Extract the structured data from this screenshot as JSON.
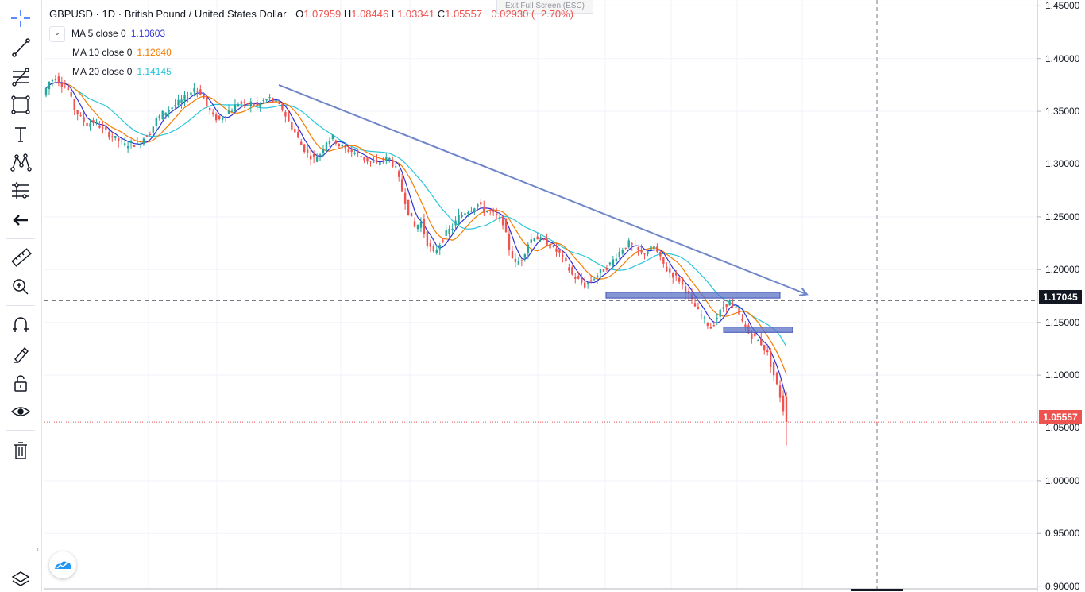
{
  "header": {
    "symbol": "GBPUSD",
    "interval": "1D",
    "description": "British Pound / United States Dollar",
    "ohlc": {
      "open_label": "O",
      "open": "1.07959",
      "high_label": "H",
      "high": "1.08446",
      "low_label": "L",
      "low": "1.03341",
      "close_label": "C",
      "close": "1.05557",
      "change": "−0.02930 (−2.70%)"
    }
  },
  "exit_fullscreen": "Exit Full Screen (ESC)",
  "indicators": [
    {
      "label": "MA 5 close 0",
      "value": "1.10603",
      "color": "#2f2fd6"
    },
    {
      "label": "MA 10 close 0",
      "value": "1.12640",
      "color": "#f57c00"
    },
    {
      "label": "MA 20 close 0",
      "value": "1.14145",
      "color": "#26c6da"
    }
  ],
  "toolbar": {
    "tools": [
      "crosshair-icon",
      "trend-line-icon",
      "fib-icon",
      "rectangle-icon",
      "text-icon",
      "pattern-icon",
      "forecast-icon",
      "back-arrow-icon",
      "ruler-icon",
      "zoom-in-icon",
      "magnet-icon",
      "lock-drawings-icon",
      "unlock-icon",
      "eye-icon",
      "trash-icon"
    ]
  },
  "price_tags": {
    "crosshair_price": "1.17045",
    "last_price": "1.05557"
  },
  "colors": {
    "up": "#26a69a",
    "down": "#ef5350",
    "trendline": "#6f87c9",
    "zone_fill": "#5c73c7",
    "last_price": "#ef5350",
    "crosshair_tag": "#131722"
  },
  "chart_data": {
    "type": "candlestick",
    "symbol": "GBPUSD",
    "interval": "1D",
    "y_ticks": [
      "1.45000",
      "1.40000",
      "1.35000",
      "1.30000",
      "1.25000",
      "1.20000",
      "1.15000",
      "1.10000",
      "1.05000",
      "1.00000",
      "0.95000",
      "0.90000"
    ],
    "ylim": [
      0.8975,
      1.4555
    ],
    "close_path": [
      1.365,
      1.378,
      1.382,
      1.376,
      1.37,
      1.352,
      1.344,
      1.338,
      1.34,
      1.336,
      1.33,
      1.326,
      1.322,
      1.318,
      1.32,
      1.318,
      1.325,
      1.33,
      1.342,
      1.348,
      1.352,
      1.356,
      1.36,
      1.365,
      1.372,
      1.368,
      1.355,
      1.345,
      1.342,
      1.348,
      1.352,
      1.358,
      1.356,
      1.358,
      1.355,
      1.36,
      1.362,
      1.358,
      1.352,
      1.34,
      1.33,
      1.318,
      1.31,
      1.305,
      1.31,
      1.322,
      1.325,
      1.318,
      1.314,
      1.312,
      1.31,
      1.305,
      1.302,
      1.3,
      1.305,
      1.305,
      1.295,
      1.275,
      1.255,
      1.24,
      1.245,
      1.225,
      1.215,
      1.225,
      1.235,
      1.24,
      1.25,
      1.255,
      1.258,
      1.262,
      1.256,
      1.255,
      1.25,
      1.245,
      1.22,
      1.205,
      1.21,
      1.225,
      1.232,
      1.228,
      1.225,
      1.22,
      1.215,
      1.205,
      1.195,
      1.19,
      1.185,
      1.19,
      1.195,
      1.2,
      1.205,
      1.213,
      1.22,
      1.225,
      1.22,
      1.215,
      1.218,
      1.222,
      1.21,
      1.2,
      1.195,
      1.19,
      1.18,
      1.17,
      1.16,
      1.152,
      1.145,
      1.155,
      1.165,
      1.17,
      1.162,
      1.15,
      1.14,
      1.135,
      1.13,
      1.12,
      1.1,
      1.08,
      1.055
    ],
    "last_bar": {
      "open": 1.07959,
      "high": 1.08446,
      "low": 1.03341,
      "close": 1.05557
    },
    "moving_averages": [
      {
        "name": "MA 5 close 0",
        "last": 1.10603
      },
      {
        "name": "MA 10 close 0",
        "last": 1.1264
      },
      {
        "name": "MA 20 close 0",
        "last": 1.14145
      }
    ],
    "annotations": {
      "trendline": {
        "price_start": 1.375,
        "price_end": 1.1765
      },
      "support_zones": [
        {
          "top": 1.1785,
          "bottom": 1.173
        },
        {
          "top": 1.1455,
          "bottom": 1.1405
        }
      ],
      "crosshair_price": 1.17045,
      "last_price": 1.05557
    }
  }
}
